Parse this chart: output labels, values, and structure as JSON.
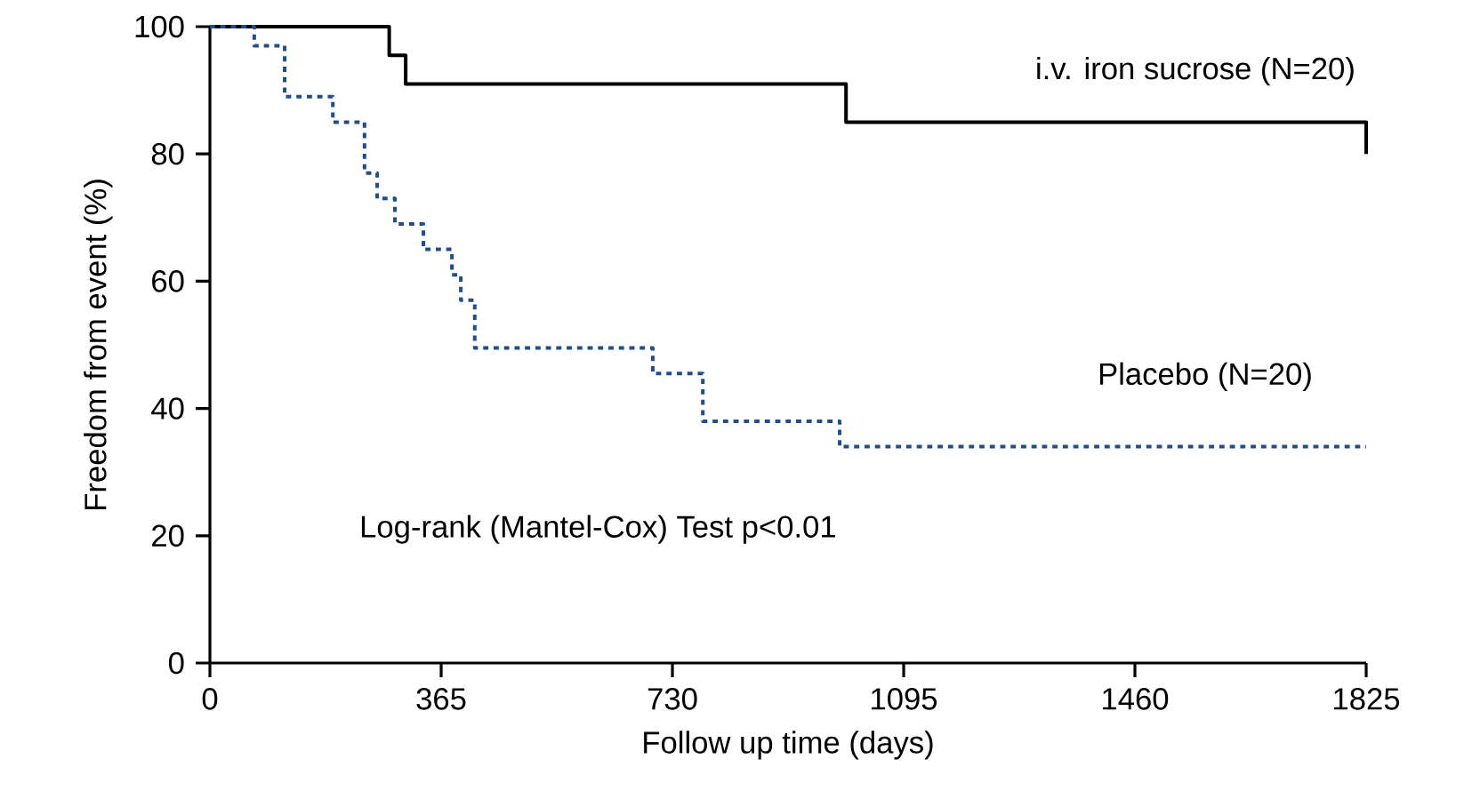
{
  "chart_data": {
    "type": "step",
    "xlabel": "Follow up time (days)",
    "ylabel": "Freedom from event  (%)",
    "xlim": [
      0,
      1825
    ],
    "ylim": [
      0,
      100
    ],
    "xticks": [
      0,
      365,
      730,
      1095,
      1460,
      1825
    ],
    "yticks": [
      0,
      20,
      40,
      60,
      80,
      100
    ],
    "series": [
      {
        "name": "i.v. iron sucrose (N=20)",
        "color": "#000000",
        "line_style": "solid",
        "x": [
          0,
          283,
          309,
          1004,
          1825
        ],
        "values": [
          100,
          95.5,
          91,
          85,
          80
        ]
      },
      {
        "name": "Placebo (N=20)",
        "color": "#1f4e8c",
        "line_style": "dotted",
        "x": [
          0,
          70,
          118,
          194,
          244,
          264,
          292,
          337,
          382,
          396,
          418,
          699,
          778,
          994,
          1825
        ],
        "values": [
          100,
          97,
          89,
          85,
          77,
          73,
          69,
          65,
          61,
          57,
          49.5,
          45.5,
          38,
          34,
          34
        ]
      }
    ],
    "annotations": [
      "Log-rank (Mantel-Cox) Test p<0.01"
    ]
  }
}
